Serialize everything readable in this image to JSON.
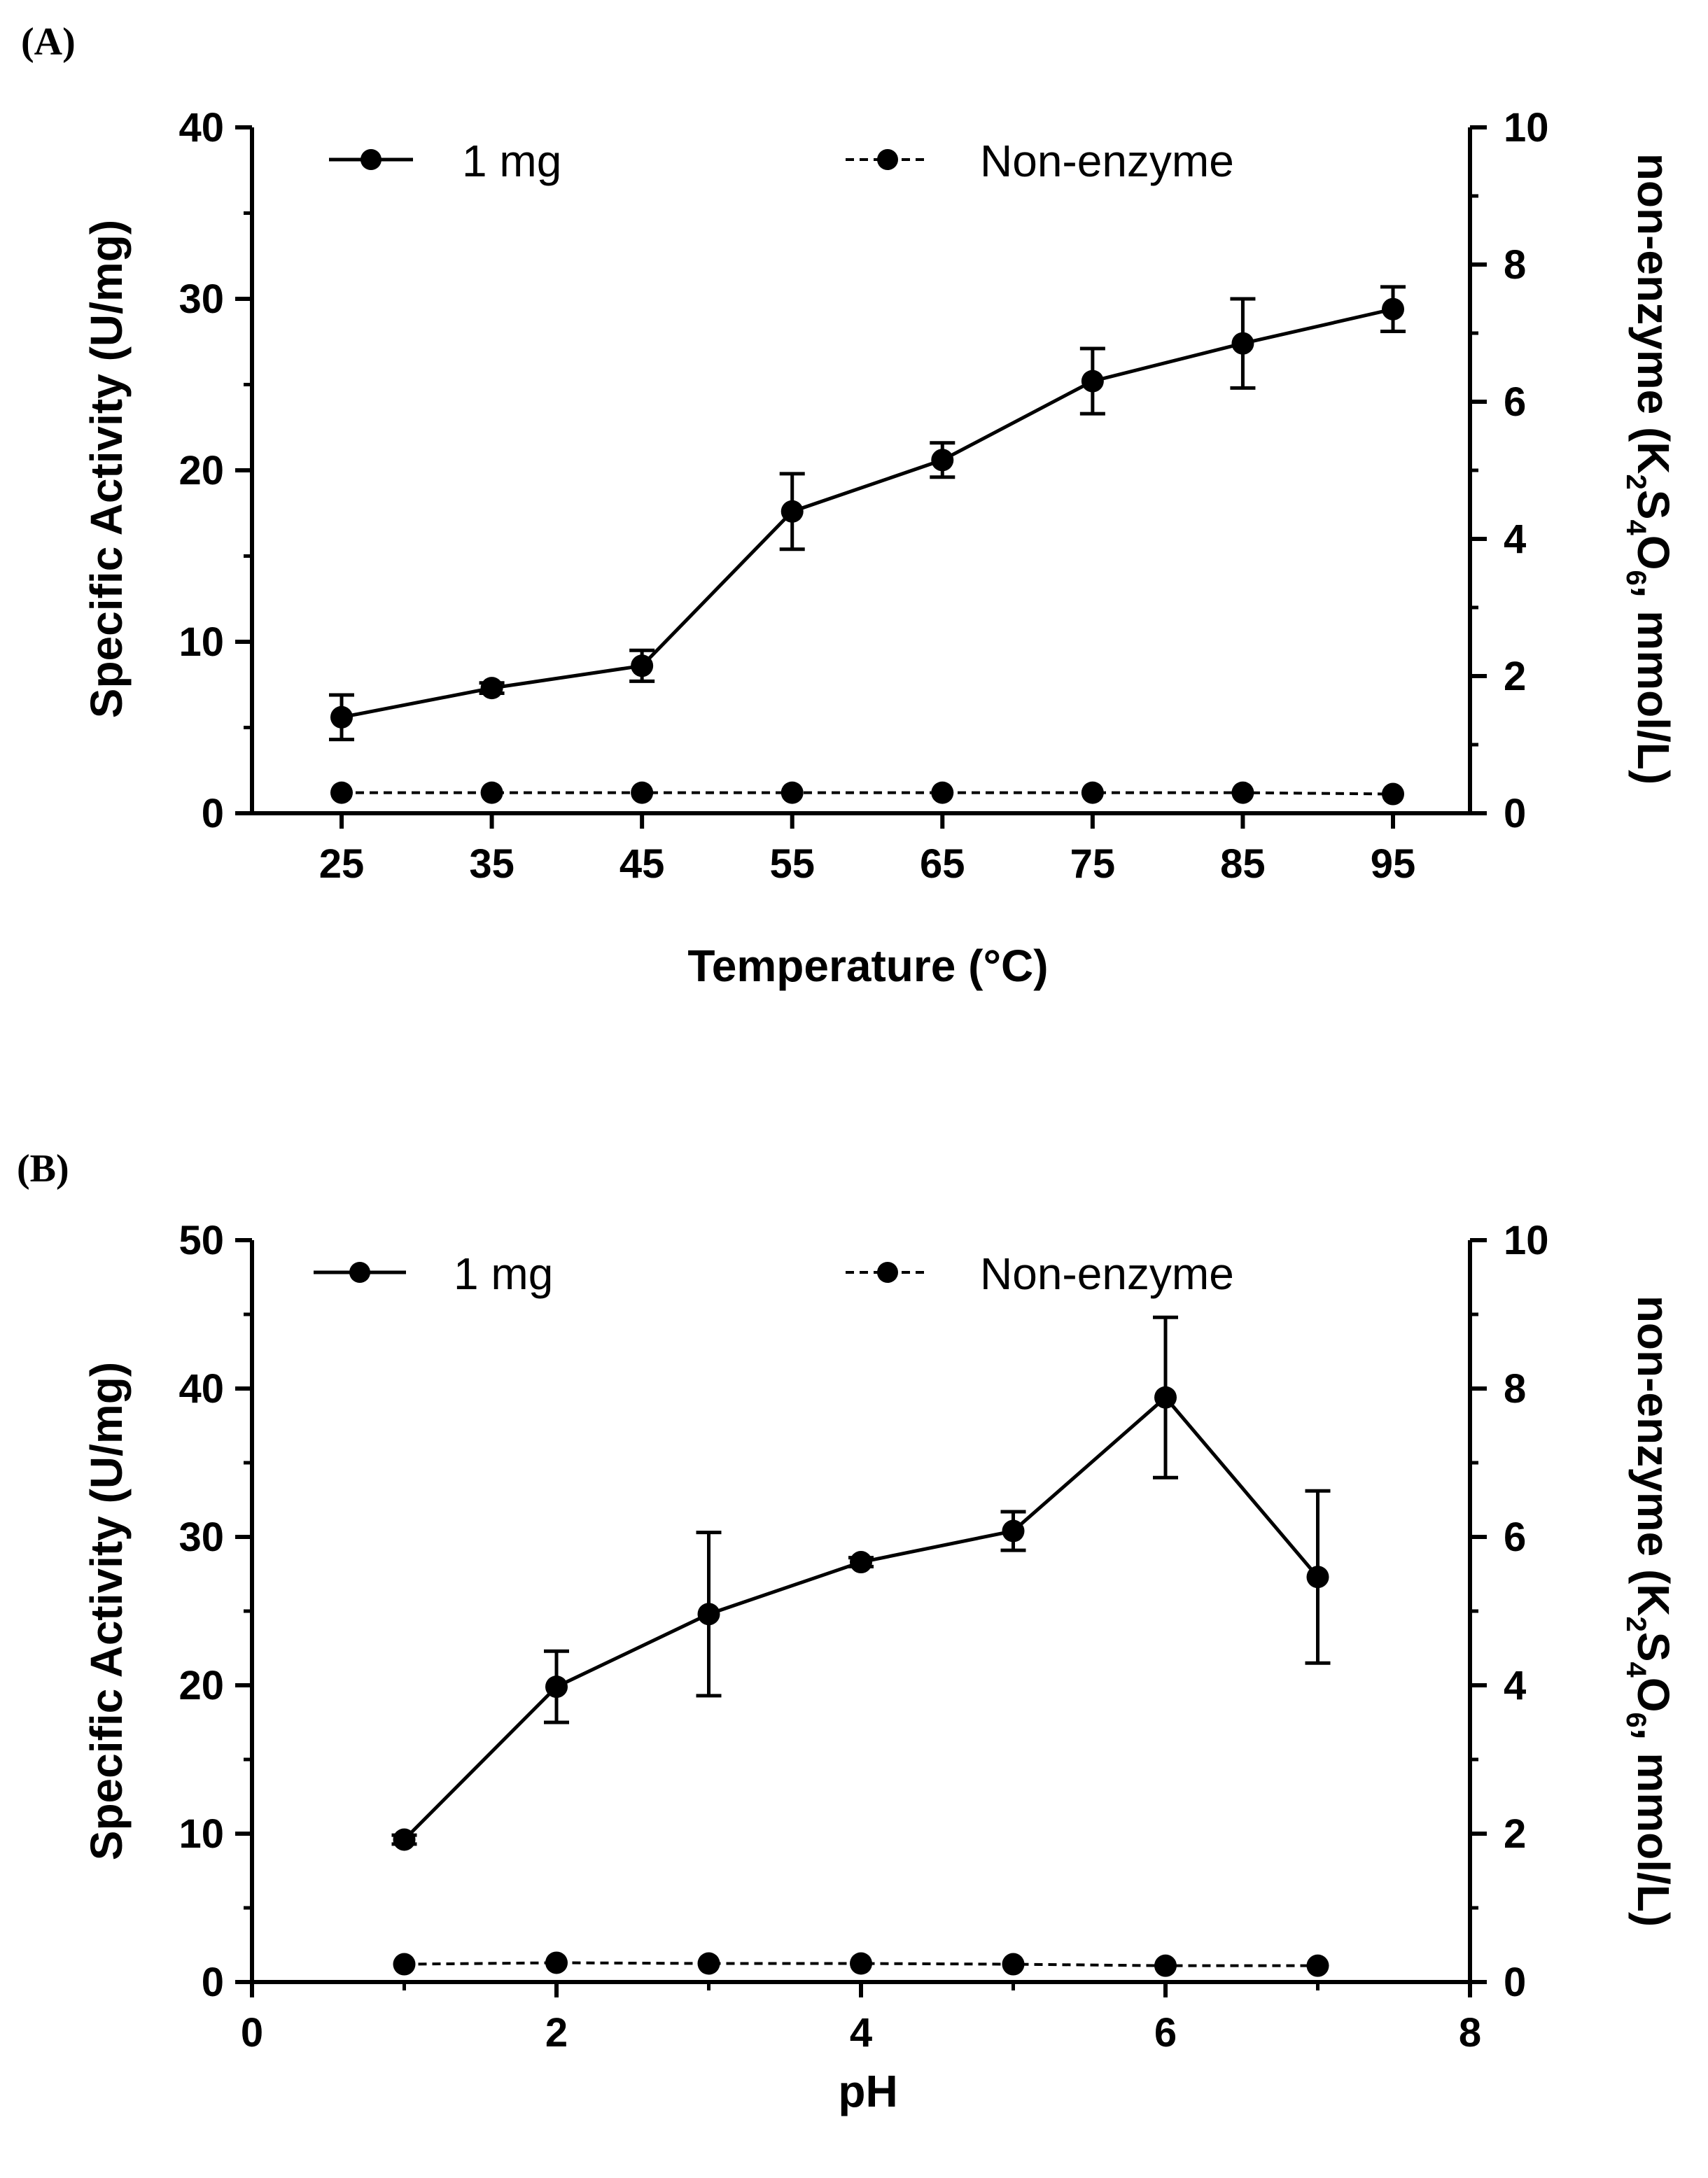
{
  "colors": {
    "ink": "#000000",
    "background": "#ffffff"
  },
  "chart_data": [
    {
      "type": "line",
      "panel_label": "(A)",
      "xlabel": "Temperature (°C)",
      "ylabel": "Specific Activity (U/mg)",
      "y2label": {
        "prefix": "non-enzyme (K",
        "sub1": "2",
        "mid1": "S",
        "sub2": "4",
        "mid2": "O",
        "sub3": "6",
        "suffix": ", mmol/L)"
      },
      "x_is_categorical": true,
      "categories": [
        "25",
        "35",
        "45",
        "55",
        "65",
        "75",
        "85",
        "95"
      ],
      "ylim": [
        0,
        40
      ],
      "yticks": [
        0,
        10,
        20,
        30,
        40
      ],
      "y_minor_step": 5,
      "y2lim": [
        0,
        10
      ],
      "y2ticks": [
        0,
        2,
        4,
        6,
        8,
        10
      ],
      "y2_minor_step": 1,
      "series": [
        {
          "name": "1 mg",
          "style": "solid",
          "axis": "left",
          "values": [
            5.6,
            7.3,
            8.6,
            17.6,
            20.6,
            25.2,
            27.4,
            29.4
          ],
          "errors": [
            1.3,
            0.3,
            0.9,
            2.2,
            1.0,
            1.9,
            2.6,
            1.3
          ]
        },
        {
          "name": "Non-enzyme",
          "style": "dashed",
          "axis": "right",
          "values": [
            0.3,
            0.3,
            0.3,
            0.3,
            0.3,
            0.3,
            0.3,
            0.28
          ],
          "errors": [
            0,
            0,
            0,
            0,
            0,
            0,
            0,
            0
          ]
        }
      ]
    },
    {
      "type": "line",
      "panel_label": "(B)",
      "xlabel": "pH",
      "ylabel": "Specific Activity (U/mg)",
      "y2label": {
        "prefix": "non-enzyme (K",
        "sub1": "2",
        "mid1": "S",
        "sub2": "4",
        "mid2": "O",
        "sub3": "6",
        "suffix": ", mmol/L)"
      },
      "x_is_categorical": false,
      "x": [
        1,
        2,
        3,
        4,
        5,
        6,
        7
      ],
      "xlim": [
        0,
        8
      ],
      "xticks": [
        0,
        2,
        4,
        6,
        8
      ],
      "x_minor_step": 1,
      "ylim": [
        0,
        50
      ],
      "yticks": [
        0,
        10,
        20,
        30,
        40,
        50
      ],
      "y_minor_step": 5,
      "y2lim": [
        0,
        10
      ],
      "y2ticks": [
        0,
        2,
        4,
        6,
        8,
        10
      ],
      "y2_minor_step": 1,
      "series": [
        {
          "name": "1 mg",
          "style": "solid",
          "axis": "left",
          "values": [
            9.6,
            19.9,
            24.8,
            28.3,
            30.4,
            39.4,
            27.3
          ],
          "errors": [
            0.3,
            2.4,
            5.5,
            0.3,
            1.3,
            5.4,
            5.8
          ]
        },
        {
          "name": "Non-enzyme",
          "style": "dashed",
          "axis": "right",
          "values": [
            0.24,
            0.26,
            0.25,
            0.25,
            0.24,
            0.22,
            0.22
          ],
          "errors": [
            0,
            0,
            0,
            0,
            0,
            0,
            0
          ]
        }
      ]
    }
  ]
}
